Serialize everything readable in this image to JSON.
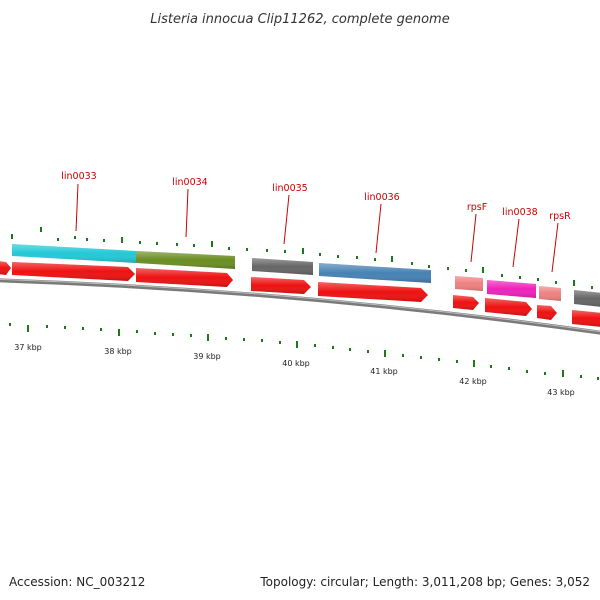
{
  "header": {
    "title": "Listeria innocua Clip11262, complete genome"
  },
  "footer": {
    "accession": "Accession: NC_003212",
    "summary": "Topology: circular; Length: 3,011,208 bp; Genes: 3,052"
  },
  "colors": {
    "backbone": "#7a7a7a",
    "cds": "#ee1111",
    "tick": "#1a7a1a",
    "label": "#cc0000"
  },
  "genes": [
    {
      "label": "",
      "color": "#ee1111",
      "kind": "stub"
    },
    {
      "label": "lin0033",
      "color": "#22c9d6"
    },
    {
      "label": "lin0034",
      "color": "#6b8e23"
    },
    {
      "label": "lin0035",
      "color": "#666666"
    },
    {
      "label": "lin0036",
      "color": "#4682b4"
    },
    {
      "label": "rpsF",
      "color": "#f08080"
    },
    {
      "label": "lin0038",
      "color": "#ee22bb"
    },
    {
      "label": "rpsR",
      "color": "#f08080"
    },
    {
      "label": "",
      "color": "#666666",
      "kind": "edge"
    }
  ],
  "scale": {
    "kbp_labels": [
      "37 kbp",
      "38 kbp",
      "39 kbp",
      "40 kbp",
      "41 kbp",
      "42 kbp",
      "43 kbp"
    ]
  }
}
